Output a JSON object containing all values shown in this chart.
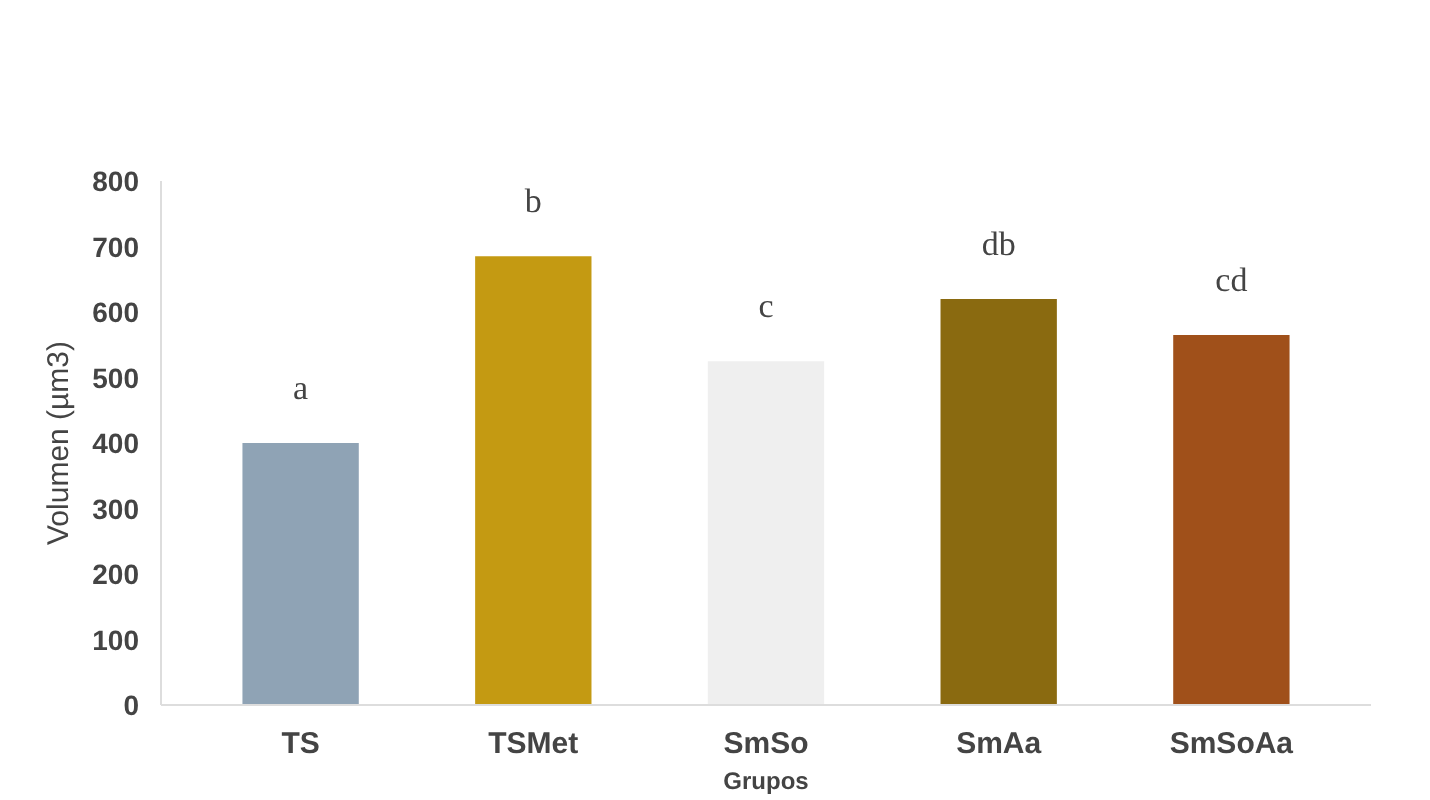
{
  "chart_data": {
    "type": "bar",
    "xlabel": "Grupos",
    "ylabel": "Volumen (µm3)",
    "categories": [
      "TS",
      "TSMet",
      "SmSo",
      "SmAa",
      "SmSoAa"
    ],
    "values": [
      400,
      685,
      525,
      620,
      565
    ],
    "colors": [
      "#8fa3b5",
      "#c49a12",
      "#efefef",
      "#8a6a10",
      "#a0501a"
    ],
    "ylim": [
      0,
      800
    ],
    "yticks": [
      0,
      100,
      200,
      300,
      400,
      500,
      600,
      700,
      800
    ],
    "grid": false,
    "annotations": [
      {
        "text": "a",
        "x": "TS",
        "y": 400
      },
      {
        "text": "b",
        "x": "TSMet",
        "y": 685
      },
      {
        "text": "c",
        "x": "SmSo",
        "y": 525
      },
      {
        "text": "db",
        "x": "SmAa",
        "y": 620
      },
      {
        "text": "cd",
        "x": "SmSoAa",
        "y": 565
      }
    ]
  }
}
